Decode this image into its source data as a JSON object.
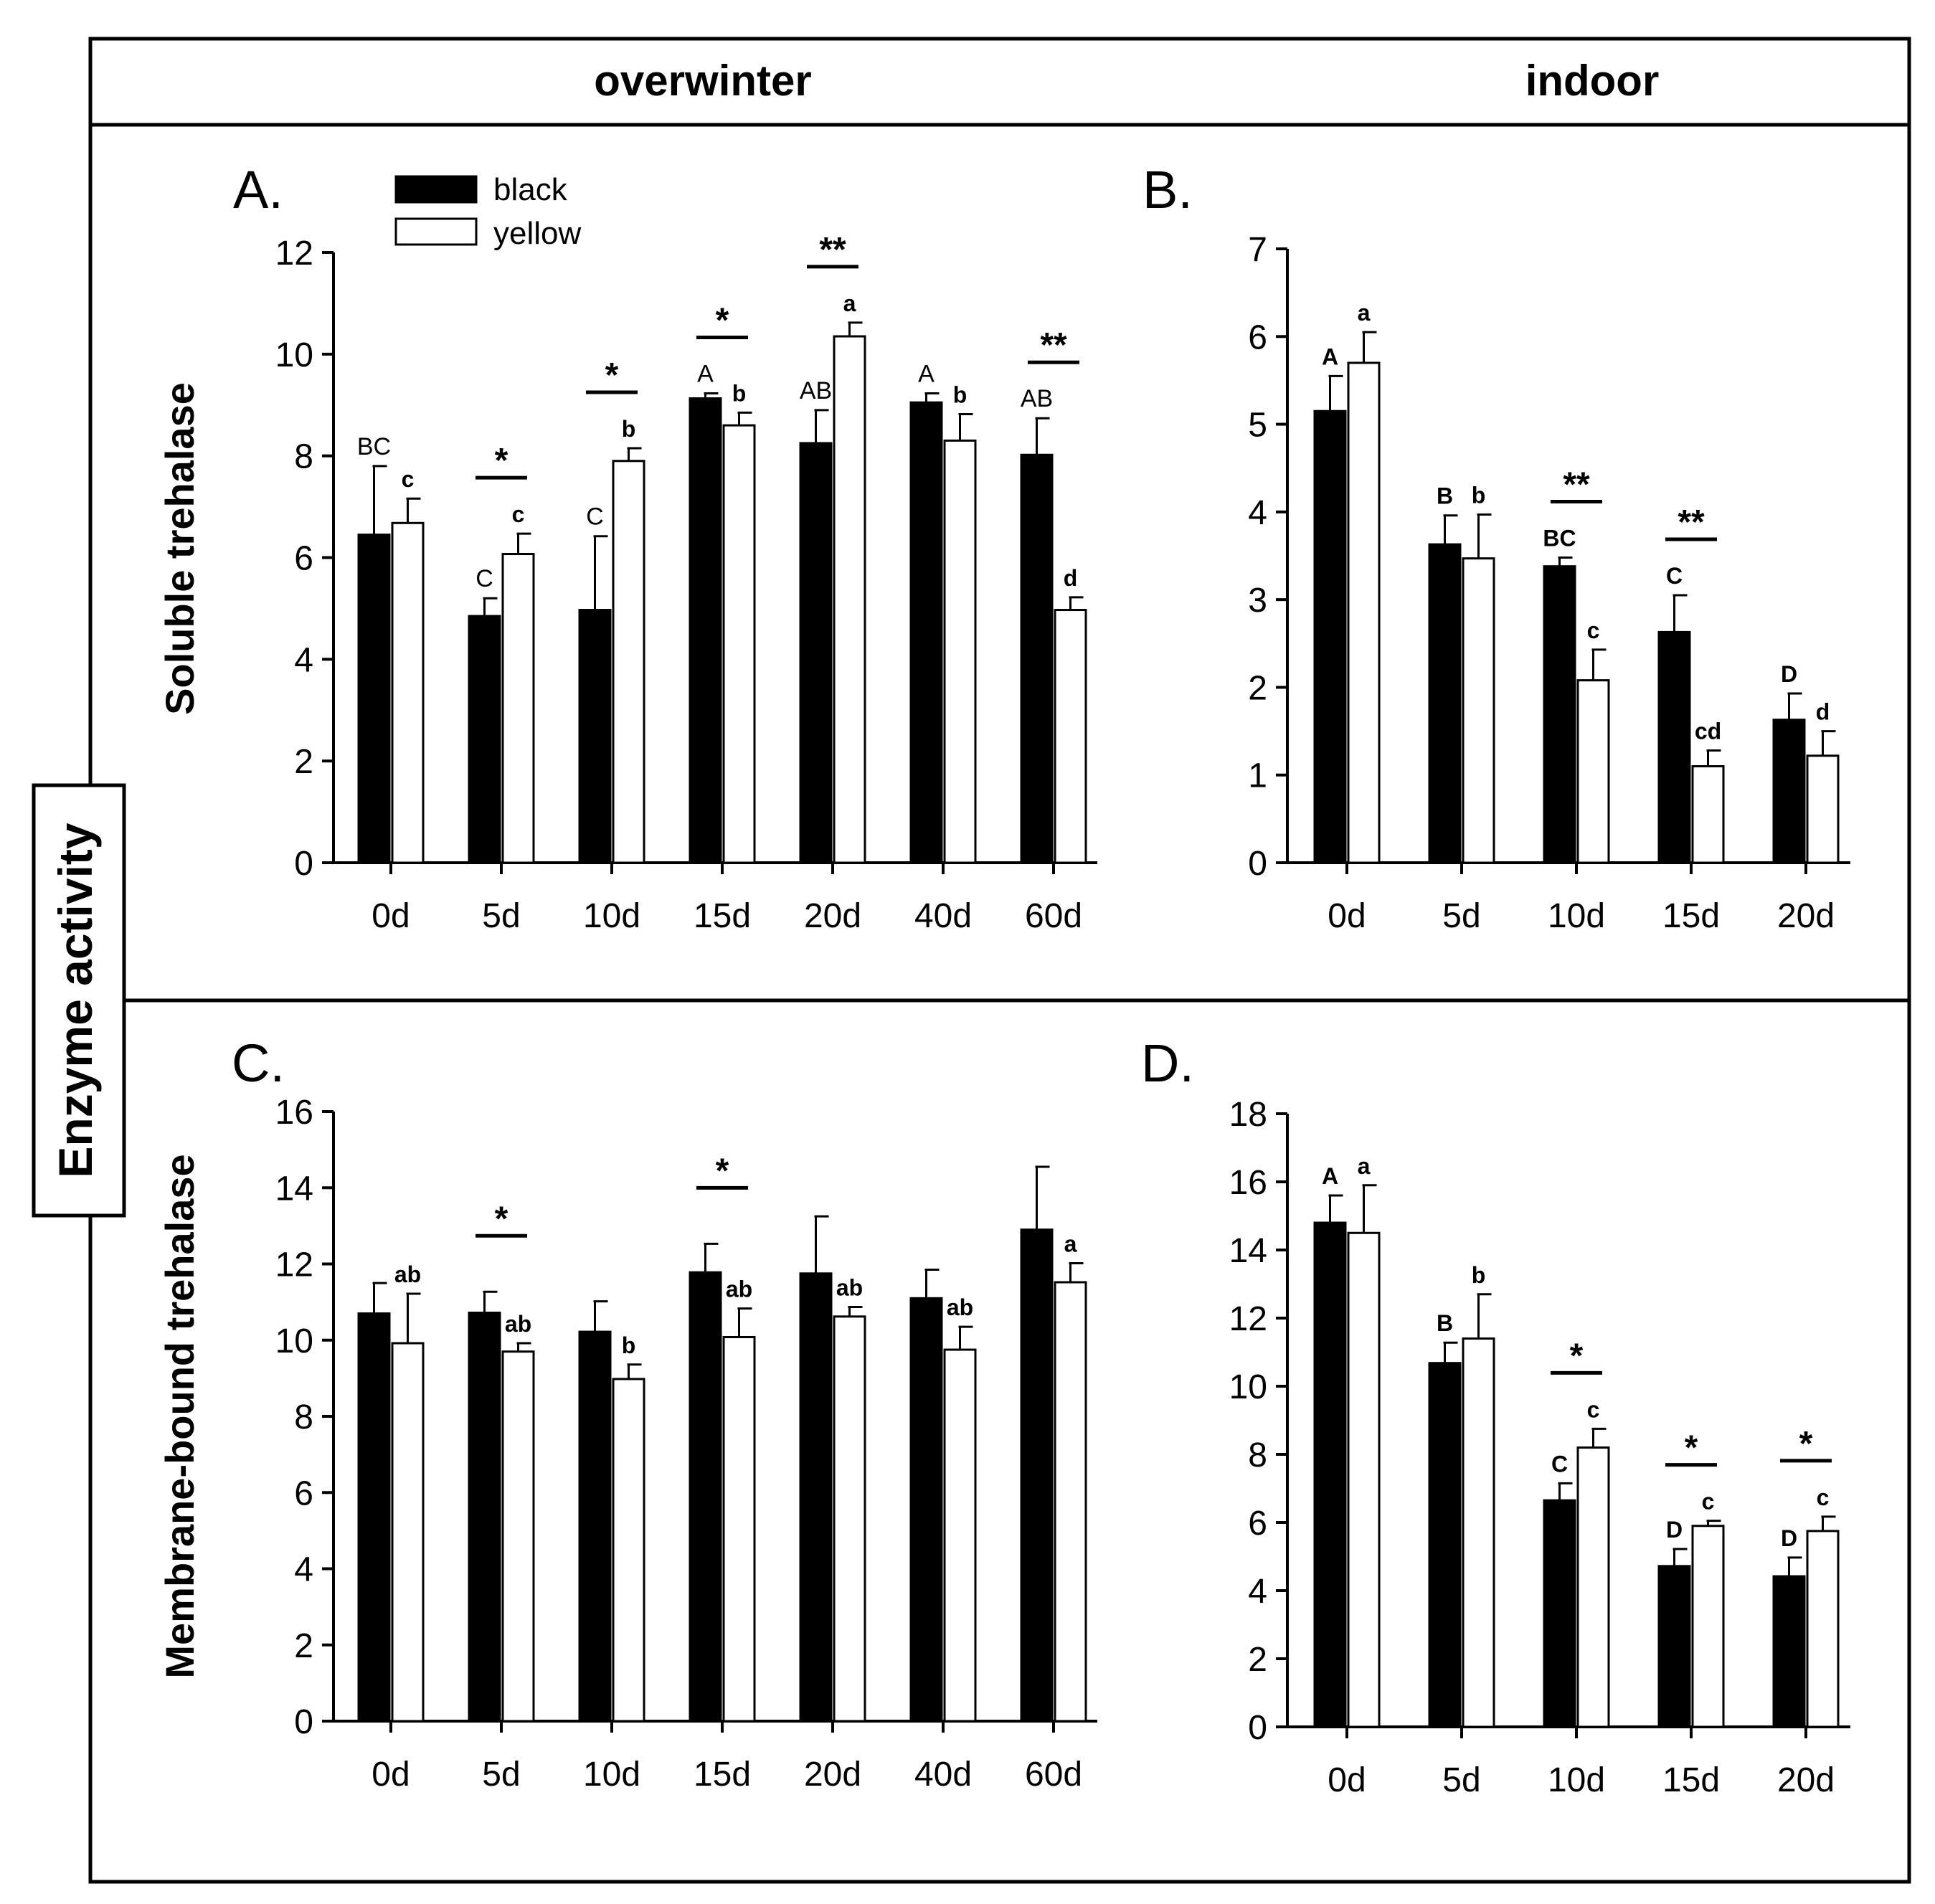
{
  "header": {
    "left_title": "overwinter",
    "right_title": "indoor"
  },
  "side_label": "Enzyme activity",
  "legend": [
    {
      "name": "black",
      "color": "#000000"
    },
    {
      "name": "yellow",
      "color": "#ffffff"
    }
  ],
  "chart_data": [
    {
      "type": "bar",
      "panel_label": "A.",
      "ylabel": "Soluble trehalase",
      "ylim": [
        0,
        12
      ],
      "yticks": [
        0,
        2,
        4,
        6,
        8,
        10,
        12
      ],
      "categories": [
        "0d",
        "5d",
        "10d",
        "15d",
        "20d",
        "40d",
        "60d"
      ],
      "series": [
        {
          "name": "black",
          "values": [
            6.45,
            4.85,
            4.97,
            9.13,
            8.25,
            9.05,
            8.02
          ],
          "errors": [
            1.35,
            0.35,
            1.45,
            0.1,
            0.65,
            0.18,
            0.72
          ],
          "letters": [
            "BC",
            "C",
            "C",
            "A",
            "AB",
            "A",
            "AB"
          ]
        },
        {
          "name": "yellow",
          "values": [
            6.68,
            6.07,
            7.9,
            8.6,
            10.35,
            8.3,
            4.97
          ],
          "errors": [
            0.48,
            0.4,
            0.25,
            0.25,
            0.27,
            0.52,
            0.25
          ],
          "letters": [
            "c",
            "c",
            "b",
            "b",
            "a",
            "b",
            "d"
          ]
        }
      ],
      "significance": [
        "",
        "*",
        "*",
        "*",
        "**",
        "",
        "**"
      ]
    },
    {
      "type": "bar",
      "panel_label": "B.",
      "ylabel": "",
      "ylim": [
        0,
        7
      ],
      "yticks": [
        0,
        1,
        2,
        3,
        4,
        5,
        6,
        7
      ],
      "categories": [
        "0d",
        "5d",
        "10d",
        "15d",
        "20d"
      ],
      "series": [
        {
          "name": "black",
          "values": [
            5.15,
            3.63,
            3.38,
            2.63,
            1.63
          ],
          "errors": [
            0.4,
            0.33,
            0.1,
            0.42,
            0.3
          ],
          "letters": [
            "A",
            "B",
            "BC",
            "C",
            "D"
          ]
        },
        {
          "name": "yellow",
          "values": [
            5.7,
            3.47,
            2.08,
            1.1,
            1.22
          ],
          "errors": [
            0.35,
            0.5,
            0.35,
            0.18,
            0.28
          ],
          "letters": [
            "a",
            "b",
            "c",
            "cd",
            "d"
          ]
        }
      ],
      "significance": [
        "",
        "",
        "**",
        "**",
        ""
      ]
    },
    {
      "type": "bar",
      "panel_label": "C.",
      "ylabel": "Membrane-bound trehalase",
      "ylim": [
        0,
        16
      ],
      "yticks": [
        0,
        2,
        4,
        6,
        8,
        10,
        12,
        14,
        16
      ],
      "categories": [
        "0d",
        "5d",
        "10d",
        "15d",
        "20d",
        "40d",
        "60d"
      ],
      "series": [
        {
          "name": "black",
          "values": [
            10.7,
            10.72,
            10.22,
            11.78,
            11.75,
            11.1,
            12.9
          ],
          "errors": [
            0.8,
            0.55,
            0.8,
            0.75,
            1.5,
            0.75,
            1.65
          ],
          "letters": [
            "",
            "",
            "",
            "",
            "",
            "",
            ""
          ]
        },
        {
          "name": "yellow",
          "values": [
            9.92,
            9.7,
            8.98,
            10.08,
            10.62,
            9.75,
            11.52
          ],
          "errors": [
            1.3,
            0.22,
            0.38,
            0.75,
            0.25,
            0.6,
            0.5
          ],
          "letters": [
            "ab",
            "ab",
            "b",
            "ab",
            "ab",
            "ab",
            "a"
          ]
        }
      ],
      "significance": [
        "",
        "*",
        "",
        "*",
        "",
        "",
        ""
      ]
    },
    {
      "type": "bar",
      "panel_label": "D.",
      "ylabel": "",
      "ylim": [
        0,
        18
      ],
      "yticks": [
        0,
        2,
        4,
        6,
        8,
        10,
        12,
        14,
        16,
        18
      ],
      "categories": [
        "0d",
        "5d",
        "10d",
        "15d",
        "20d"
      ],
      "series": [
        {
          "name": "black",
          "values": [
            14.8,
            10.68,
            6.65,
            4.72,
            4.42
          ],
          "errors": [
            0.8,
            0.6,
            0.5,
            0.5,
            0.55
          ],
          "letters": [
            "A",
            "B",
            "C",
            "D",
            "D"
          ]
        },
        {
          "name": "yellow",
          "values": [
            14.5,
            11.4,
            8.2,
            5.9,
            5.75
          ],
          "errors": [
            1.4,
            1.3,
            0.55,
            0.15,
            0.42
          ],
          "letters": [
            "a",
            "b",
            "c",
            "c",
            "c"
          ]
        }
      ],
      "significance": [
        "",
        "",
        "*",
        "*",
        "*"
      ]
    }
  ]
}
